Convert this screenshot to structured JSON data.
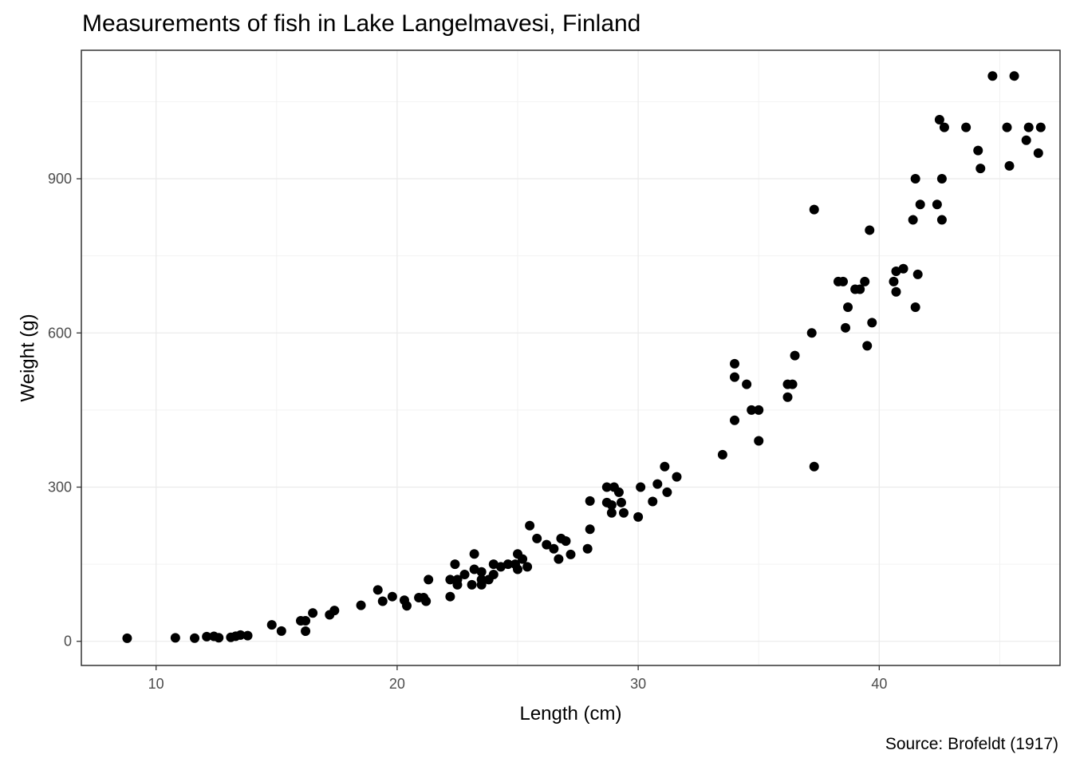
{
  "chart_data": {
    "type": "scatter",
    "title": "Measurements of fish in Lake Langelmavesi, Finland",
    "caption": "Source: Brofeldt (1917)",
    "xlabel": "Length (cm)",
    "ylabel": "Weight (g)",
    "xlim": [
      6.9,
      47.5
    ],
    "ylim": [
      -47,
      1150
    ],
    "x_ticks": [
      10,
      20,
      30,
      40
    ],
    "y_ticks": [
      0,
      300,
      600,
      900
    ],
    "x_minor": [
      15,
      25,
      35,
      45
    ],
    "y_minor": [
      150,
      450,
      750,
      1050
    ],
    "grid": true,
    "point_color": "#000000",
    "points": [
      [
        8.8,
        5.9
      ],
      [
        10.8,
        6.7
      ],
      [
        11.6,
        6.1
      ],
      [
        12.1,
        9.0
      ],
      [
        12.4,
        9.7
      ],
      [
        12.6,
        7.0
      ],
      [
        13.1,
        7.8
      ],
      [
        13.3,
        9.8
      ],
      [
        13.5,
        12.2
      ],
      [
        13.8,
        11.0
      ],
      [
        14.8,
        32.0
      ],
      [
        15.2,
        19.9
      ],
      [
        16.0,
        40.0
      ],
      [
        16.2,
        19.7
      ],
      [
        16.2,
        40.0
      ],
      [
        16.5,
        55.0
      ],
      [
        17.2,
        51.5
      ],
      [
        17.4,
        60.0
      ],
      [
        18.5,
        70.0
      ],
      [
        19.2,
        100.0
      ],
      [
        19.4,
        78.0
      ],
      [
        19.8,
        87.0
      ],
      [
        20.3,
        80.0
      ],
      [
        20.4,
        69.0
      ],
      [
        20.9,
        85.0
      ],
      [
        21.1,
        85.0
      ],
      [
        21.2,
        78.0
      ],
      [
        21.3,
        120.0
      ],
      [
        22.2,
        87.0
      ],
      [
        22.2,
        120.0
      ],
      [
        22.4,
        150.0
      ],
      [
        22.5,
        110.0
      ],
      [
        22.5,
        120.0
      ],
      [
        22.8,
        130.0
      ],
      [
        23.1,
        110.0
      ],
      [
        23.2,
        170.0
      ],
      [
        23.2,
        140.0
      ],
      [
        23.5,
        110.0
      ],
      [
        23.5,
        120.0
      ],
      [
        23.5,
        135.0
      ],
      [
        23.8,
        120.0
      ],
      [
        24.0,
        130.0
      ],
      [
        24.0,
        150.0
      ],
      [
        24.3,
        145.0
      ],
      [
        24.6,
        150.0
      ],
      [
        24.9,
        150.0
      ],
      [
        25.0,
        140.0
      ],
      [
        25.0,
        170.0
      ],
      [
        25.2,
        160.0
      ],
      [
        25.4,
        145.0
      ],
      [
        25.5,
        225.0
      ],
      [
        25.8,
        200.0
      ],
      [
        26.2,
        188.0
      ],
      [
        26.5,
        180.0
      ],
      [
        26.7,
        160.0
      ],
      [
        26.8,
        200.0
      ],
      [
        27.0,
        195.0
      ],
      [
        27.2,
        169.0
      ],
      [
        27.9,
        180.0
      ],
      [
        28.0,
        218.0
      ],
      [
        28.0,
        273.0
      ],
      [
        28.7,
        300.0
      ],
      [
        28.7,
        270.0
      ],
      [
        28.9,
        250.0
      ],
      [
        28.9,
        265.0
      ],
      [
        29.0,
        300.0
      ],
      [
        29.2,
        290.0
      ],
      [
        29.3,
        270.0
      ],
      [
        29.4,
        250.0
      ],
      [
        30.0,
        242.0
      ],
      [
        30.1,
        300.0
      ],
      [
        30.6,
        272.0
      ],
      [
        30.8,
        306.0
      ],
      [
        31.1,
        340.0
      ],
      [
        31.2,
        290.0
      ],
      [
        31.6,
        320.0
      ],
      [
        33.5,
        363.0
      ],
      [
        34.0,
        430.0
      ],
      [
        34.0,
        540.0
      ],
      [
        34.0,
        514.0
      ],
      [
        34.5,
        500.0
      ],
      [
        34.7,
        450.0
      ],
      [
        35.0,
        390.0
      ],
      [
        35.0,
        450.0
      ],
      [
        36.2,
        500.0
      ],
      [
        36.2,
        475.0
      ],
      [
        36.4,
        500.0
      ],
      [
        36.5,
        556.0
      ],
      [
        37.2,
        600.0
      ],
      [
        37.3,
        840.0
      ],
      [
        37.3,
        340.0
      ],
      [
        38.3,
        700.0
      ],
      [
        38.5,
        700.0
      ],
      [
        38.6,
        610.0
      ],
      [
        38.7,
        650.0
      ],
      [
        39.0,
        685.0
      ],
      [
        39.2,
        685.0
      ],
      [
        39.4,
        700.0
      ],
      [
        39.5,
        575.0
      ],
      [
        39.6,
        800.0
      ],
      [
        39.7,
        620.0
      ],
      [
        40.6,
        700.0
      ],
      [
        40.7,
        680.0
      ],
      [
        40.7,
        720.0
      ],
      [
        41.0,
        725.0
      ],
      [
        41.4,
        820.0
      ],
      [
        41.5,
        900.0
      ],
      [
        41.5,
        650.0
      ],
      [
        41.6,
        714.0
      ],
      [
        41.7,
        850.0
      ],
      [
        42.4,
        850.0
      ],
      [
        42.5,
        1015.0
      ],
      [
        42.6,
        820.0
      ],
      [
        42.6,
        900.0
      ],
      [
        42.7,
        1000.0
      ],
      [
        43.6,
        1000.0
      ],
      [
        44.1,
        955.0
      ],
      [
        44.2,
        920.0
      ],
      [
        44.7,
        1100.0
      ],
      [
        45.3,
        1000.0
      ],
      [
        45.4,
        925.0
      ],
      [
        45.6,
        1100.0
      ],
      [
        46.1,
        975.0
      ],
      [
        46.2,
        1000.0
      ],
      [
        46.6,
        950.0
      ],
      [
        46.7,
        1000.0
      ]
    ]
  }
}
